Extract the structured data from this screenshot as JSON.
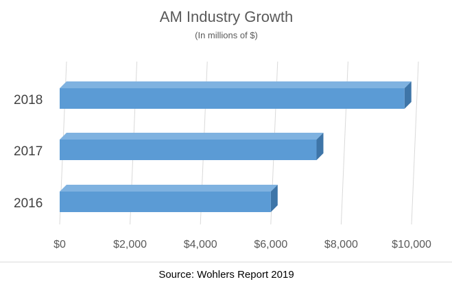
{
  "chart_data": {
    "type": "bar",
    "orientation": "horizontal",
    "title": "AM Industry Growth",
    "subtitle": "(In millions of $)",
    "categories": [
      "2016",
      "2017",
      "2018"
    ],
    "values": [
      6000,
      7300,
      9800
    ],
    "xlim": [
      0,
      10000
    ],
    "x_ticks": [
      "$0",
      "$2,000",
      "$4,000",
      "$6,000",
      "$8,000",
      "$10,000"
    ],
    "grid": "vertical",
    "legend": "none",
    "bar_color": "#5B9BD5",
    "bar_top_color": "#7FB2E0",
    "bar_side_color": "#3E75A8"
  },
  "footer": {
    "source": "Source: Wohlers Report 2019"
  }
}
